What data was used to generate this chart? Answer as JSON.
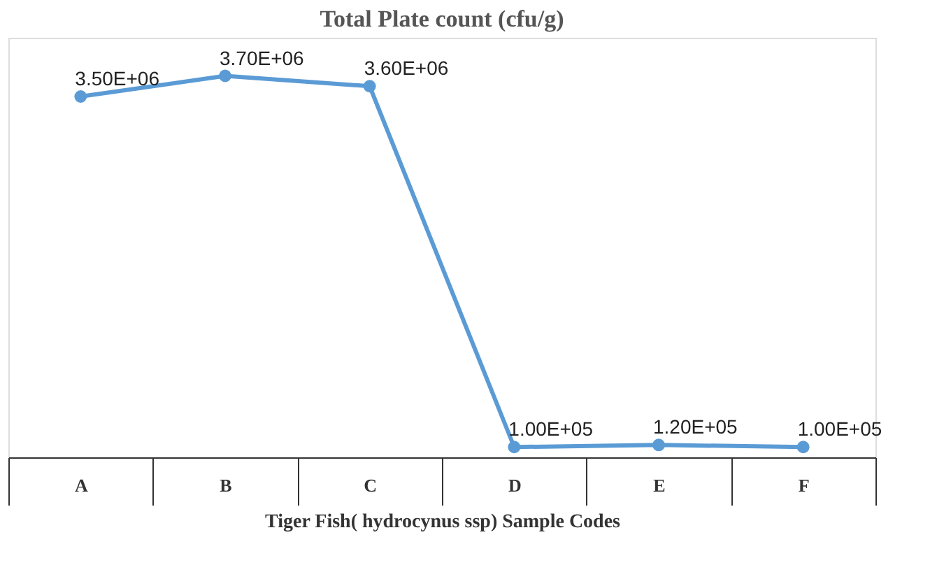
{
  "chart_data": {
    "type": "line",
    "title": "Total Plate count (cfu/g)",
    "xlabel": "Tiger Fish( hydrocynus ssp) Sample Codes",
    "categories": [
      "A",
      "B",
      "C",
      "D",
      "E",
      "F"
    ],
    "series": [
      {
        "color": "#5b9bd5",
        "values": [
          3500000,
          3700000,
          3600000,
          100000,
          120000,
          100000
        ],
        "value_labels": [
          "3.50E+06",
          "3.70E+06",
          "3.60E+06",
          "1.00E+05",
          "1.20E+05",
          "1.00E+05"
        ]
      }
    ],
    "marker": "circle"
  }
}
